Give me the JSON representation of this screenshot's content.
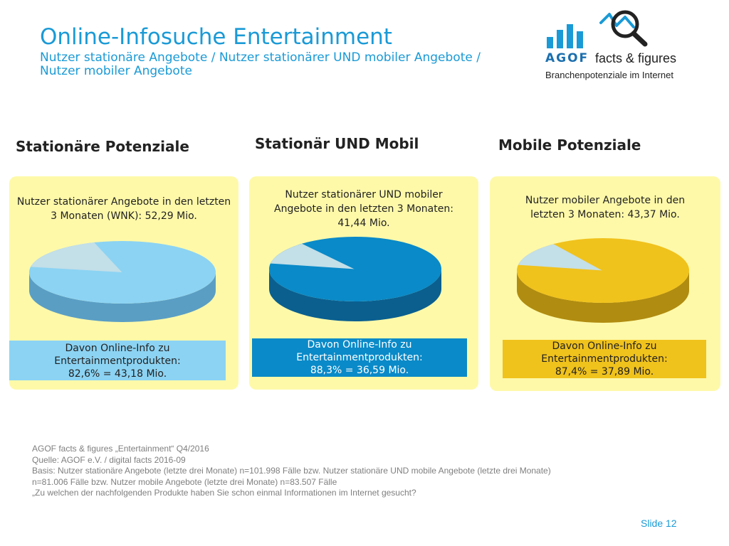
{
  "header": {
    "title": "Online-Infosuche Entertainment",
    "subtitle_line1": "Nutzer stationäre Angebote / Nutzer stationärer UND mobiler Angebote /",
    "subtitle_line2": "Nutzer mobiler Angebote"
  },
  "logo": {
    "brand": "AGOF",
    "product": "facts & figures",
    "tagline": "Branchenpotenziale im Internet",
    "colors": {
      "bars": "#1a9ad6",
      "magnifier": "#222222",
      "line": "#1a9ad6"
    }
  },
  "panels": [
    {
      "heading": "Stationäre Potenziale",
      "description": "Nutzer stationärer Angebote in den letzten 3 Monaten (WNK): 52,29 Mio.",
      "band_line1": "Davon Online-Info zu",
      "band_line2": "Entertainmentprodukten:",
      "band_line3": "82,6% = 43,18 Mio.",
      "colors": {
        "main": "#8cd3f3",
        "side": "#5a9ec4",
        "rest": "#c3dfe8",
        "band": "#8cd3f3",
        "band_text": "#222222"
      }
    },
    {
      "heading": "Stationär UND Mobil",
      "description": "Nutzer stationärer UND mobiler Angebote in den letzten 3 Monaten: 41,44 Mio.",
      "band_line1": "Davon Online-Info zu",
      "band_line2": "Entertainmentprodukten:",
      "band_line3": "88,3% = 36,59 Mio.",
      "colors": {
        "main": "#0a8ac8",
        "side": "#0a5f8f",
        "rest": "#c3dfe8",
        "band": "#0a8ac8",
        "band_text": "#ffffff"
      }
    },
    {
      "heading": "Mobile Potenziale",
      "description": "Nutzer mobiler Angebote in den letzten 3 Monaten: 43,37 Mio.",
      "band_line1": "Davon Online-Info zu",
      "band_line2": "Entertainmentprodukten:",
      "band_line3": "87,4% = 37,89 Mio.",
      "colors": {
        "main": "#f0c21c",
        "side": "#b08c10",
        "rest": "#c3dfe8",
        "band": "#f0c21c",
        "band_text": "#222222"
      }
    }
  ],
  "chart_data": [
    {
      "type": "pie",
      "title": "Stationäre Potenziale",
      "categories": [
        "Davon Online-Info zu Entertainmentprodukten",
        ""
      ],
      "values": [
        82.6,
        17.4
      ]
    },
    {
      "type": "pie",
      "title": "Stationär UND Mobil",
      "categories": [
        "Davon Online-Info zu Entertainmentprodukten",
        ""
      ],
      "values": [
        88.3,
        11.7
      ]
    },
    {
      "type": "pie",
      "title": "Mobile Potenziale",
      "categories": [
        "Davon Online-Info zu Entertainmentprodukten",
        ""
      ],
      "values": [
        87.4,
        12.6
      ]
    }
  ],
  "footnote": {
    "line1": "AGOF facts & figures „Entertainment“ Q4/2016",
    "line2": "Quelle: AGOF e.V. / digital facts 2016-09",
    "line3": "Basis: Nutzer stationäre Angebote (letzte drei Monate) n=101.998 Fälle bzw. Nutzer stationäre UND mobile Angebote (letzte drei Monate)",
    "line4": "n=81.006 Fälle bzw. Nutzer mobile Angebote (letzte drei Monate) n=83.507 Fälle",
    "line5": "„Zu welchen der nachfolgenden Produkte haben Sie schon einmal Informationen im Internet gesucht?"
  },
  "slide": {
    "label": "Slide 12"
  }
}
